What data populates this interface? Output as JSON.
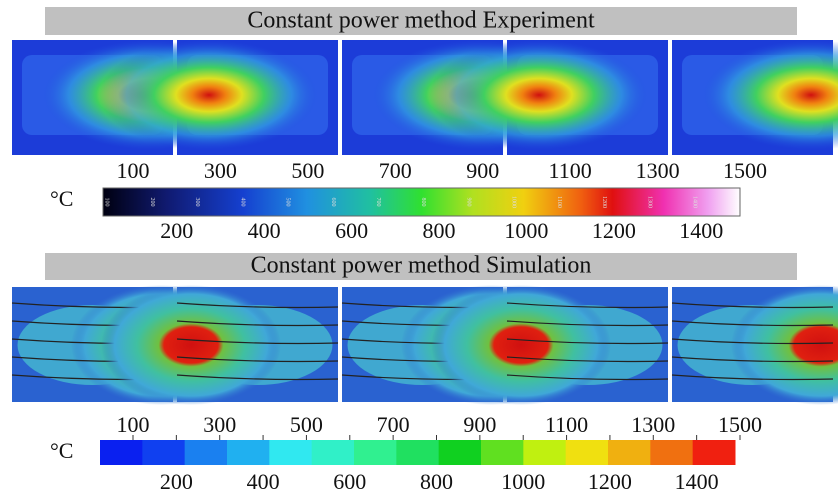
{
  "experiment": {
    "title": "Constant power method Experiment",
    "unit": "°C",
    "top_labels": [
      100,
      300,
      500,
      700,
      900,
      1100,
      1300,
      1500
    ],
    "bottom_labels": [
      200,
      400,
      600,
      800,
      1000,
      1200,
      1400
    ],
    "bar_labels": [
      100,
      200,
      300,
      400,
      500,
      600,
      700,
      800,
      900,
      1000,
      1100,
      1200,
      1300,
      1400
    ]
  },
  "simulation": {
    "title": "Constant power method Simulation",
    "unit": "°C",
    "top_labels": [
      100,
      300,
      500,
      700,
      900,
      1100,
      1300,
      1500
    ],
    "bottom_labels": [
      200,
      400,
      600,
      800,
      1000,
      1200,
      1400
    ]
  }
}
